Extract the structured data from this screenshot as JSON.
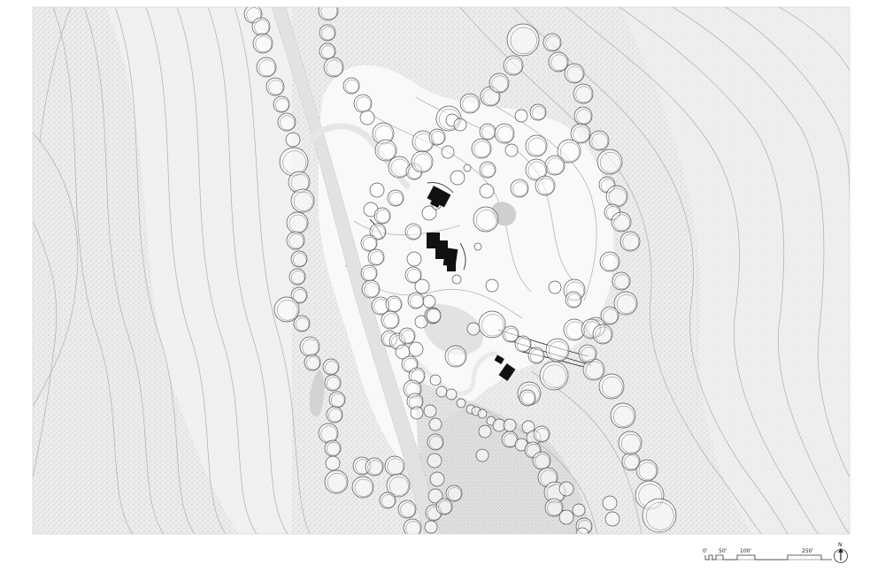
{
  "scale_bar": {
    "label_0": "0'",
    "label_50": "50'",
    "label_100": "100'",
    "label_250": "250'"
  },
  "north_arrow": {
    "label": "N"
  },
  "colors": {
    "background": "#ffffff",
    "terrain": "#ececec",
    "clearing": "#f8f8f8",
    "road": "#e2e2e2",
    "contour": "#b5b5b5",
    "tree_stroke": "#555555",
    "building": "#111111"
  }
}
